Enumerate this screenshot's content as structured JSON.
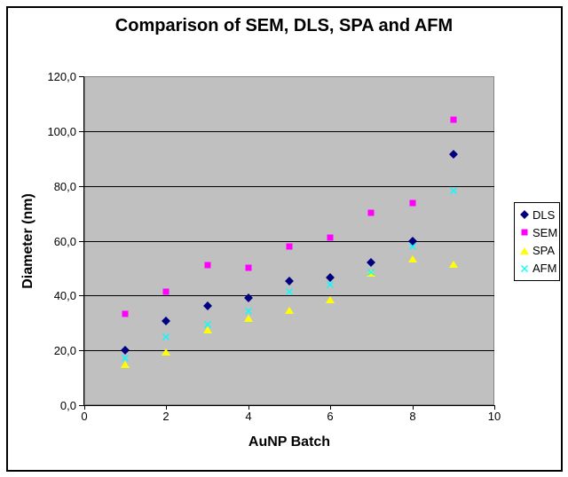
{
  "window": {
    "background": "#FFFFFF",
    "frame_border_color": "#000000",
    "plot_background": "#C0C0C0",
    "gridline_color": "#000000"
  },
  "chart_data": {
    "type": "scatter",
    "title": "Comparison of SEM, DLS, SPA and AFM",
    "xlabel": "AuNP Batch",
    "ylabel": "Diameter (nm)",
    "xlim": [
      0,
      10
    ],
    "ylim": [
      0,
      120
    ],
    "x_ticks": [
      0,
      2,
      4,
      6,
      8,
      10
    ],
    "x_tick_labels": [
      "0",
      "2",
      "4",
      "6",
      "8",
      "10"
    ],
    "y_ticks": [
      0,
      20,
      40,
      60,
      80,
      100,
      120
    ],
    "y_tick_labels": [
      "0,0",
      "20,0",
      "40,0",
      "60,0",
      "80,0",
      "100,0",
      "120,0"
    ],
    "grid": "horizontal-black",
    "legend_position": "right",
    "x": [
      1,
      2,
      3,
      4,
      5,
      6,
      7,
      8,
      9
    ],
    "series": [
      {
        "name": "DLS",
        "marker": "diamond",
        "color": "#000080",
        "values": [
          20.0,
          30.8,
          36.3,
          39.0,
          45.3,
          46.5,
          52.0,
          60.0,
          91.5
        ]
      },
      {
        "name": "SEM",
        "marker": "square",
        "color": "#FF00FF",
        "values": [
          33.3,
          41.4,
          51.0,
          50.0,
          58.0,
          61.0,
          70.2,
          73.8,
          104.0
        ]
      },
      {
        "name": "SPA",
        "marker": "triangle",
        "color": "#FFFF00",
        "values": [
          15.0,
          19.3,
          27.5,
          31.7,
          34.6,
          38.5,
          48.2,
          53.4,
          51.5
        ]
      },
      {
        "name": "AFM",
        "marker": "x",
        "color": "#00FFFF",
        "values": [
          17.1,
          25.0,
          29.5,
          34.3,
          41.4,
          44.0,
          48.5,
          58.0,
          78.3
        ]
      }
    ]
  }
}
